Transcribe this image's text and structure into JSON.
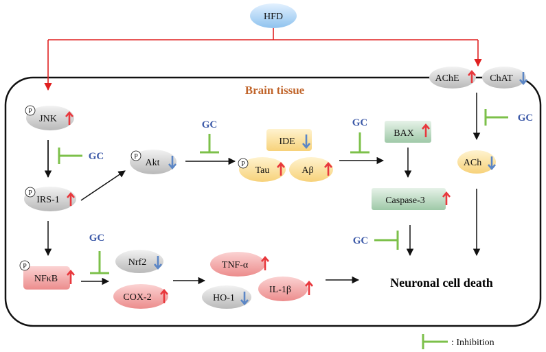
{
  "nodes": {
    "hfd": "HFD",
    "ache": "AChE",
    "chat": "ChAT",
    "brain": "Brain tissue",
    "jnk": "JNK",
    "irs1": "IRS-1",
    "nfkb": "NFκB",
    "akt": "Akt",
    "ide": "IDE",
    "tau": "Tau",
    "abeta": "Aβ",
    "bax": "BAX",
    "caspase3": "Caspase-3",
    "ach": "ACh",
    "nrf2": "Nrf2",
    "cox2": "COX-2",
    "tnfa": "TNF-α",
    "ho1": "HO-1",
    "il1b": "IL-1β",
    "death": "Neuronal cell death"
  },
  "phospho_symbol": "P",
  "gc_label": "GC",
  "legend": {
    "label": ": Inhibition"
  },
  "colors": {
    "up_arrow": "#e8383d",
    "down_arrow": "#5b86c6",
    "inhibition": "#7cc04a",
    "hfd_path": "#e02020",
    "gc_text": "#3d5aa8",
    "title": "#c0642a"
  }
}
